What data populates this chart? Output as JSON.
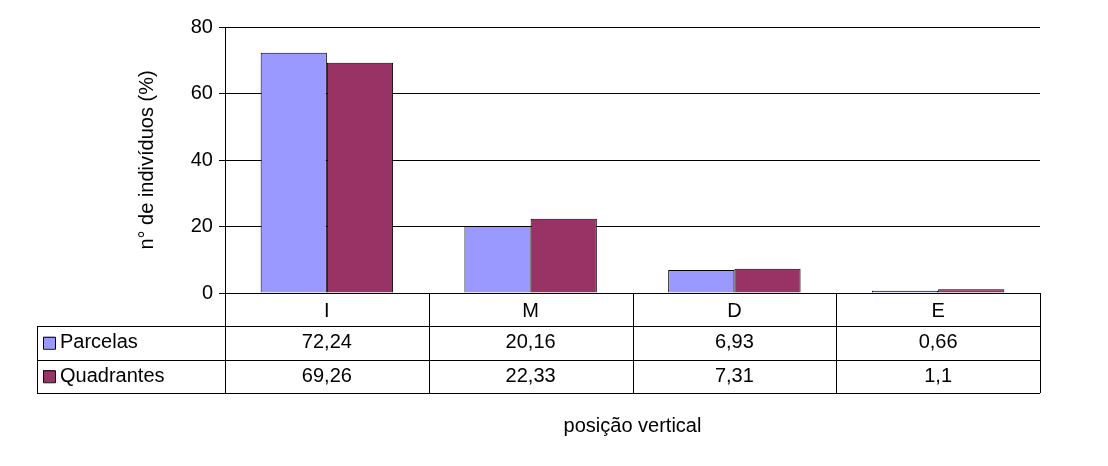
{
  "chart_data": {
    "type": "bar",
    "xlabel": "posição vertical",
    "ylabel": "n° de indivíduos (%)",
    "categories": [
      "I",
      "M",
      "D",
      "E"
    ],
    "series": [
      {
        "name": "Parcelas",
        "color": "#9999ff",
        "values": [
          72.24,
          20.16,
          6.93,
          0.66
        ],
        "value_labels": [
          "72,24",
          "20,16",
          "6,93",
          "0,66"
        ]
      },
      {
        "name": "Quadrantes",
        "color": "#993366",
        "values": [
          69.26,
          22.33,
          7.31,
          1.1
        ],
        "value_labels": [
          "69,26",
          "22,33",
          "7,31",
          "1,1"
        ]
      }
    ],
    "ylim": [
      0,
      80
    ],
    "yticks": [
      0,
      20,
      40,
      60,
      80
    ],
    "grid": "y",
    "legend": "bottom"
  }
}
